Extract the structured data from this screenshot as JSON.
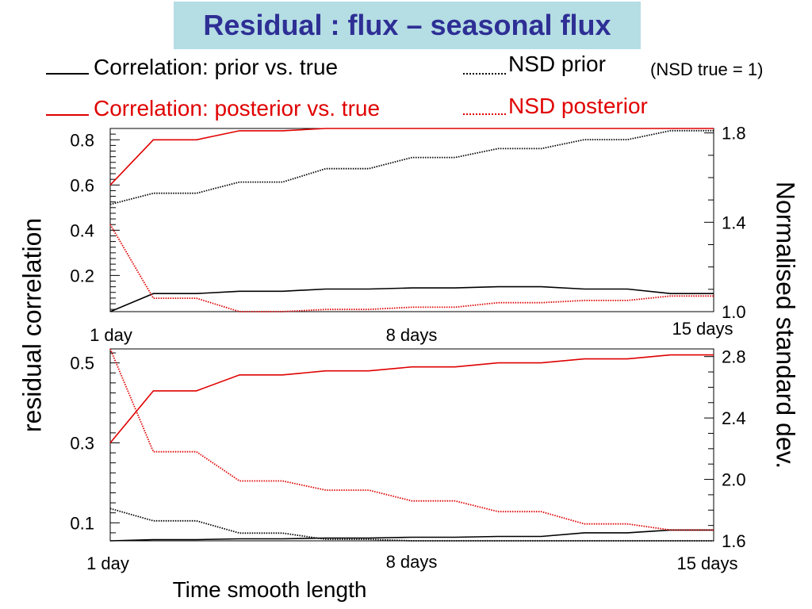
{
  "title": "Residual : flux – seasonal flux",
  "legend": {
    "corr_prior": "Correlation: prior vs. true",
    "corr_post": "Correlation: posterior vs. true",
    "nsd_prior": "NSD prior",
    "nsd_post": "NSD posterior",
    "note": "(NSD true = 1)"
  },
  "colors": {
    "prior": "#000000",
    "posterior": "#e00000",
    "title_bg": "#b4dde4",
    "title_fg": "#2e2f95"
  },
  "axes": {
    "left_label": "residual correlation",
    "right_label": "Normalised standard dev.",
    "x_label": "Time smooth length"
  },
  "chart_data": [
    {
      "type": "line",
      "panel": "top",
      "x": [
        1,
        2,
        3,
        4,
        5,
        6,
        7,
        8,
        9,
        10,
        11,
        12,
        13,
        14,
        15
      ],
      "x_ticks": [
        "1 day",
        "8 days",
        "15 days"
      ],
      "x_tick_values": [
        1,
        8,
        15
      ],
      "left_axis": {
        "ylim": [
          0.04,
          0.85
        ],
        "ticks": [
          0.2,
          0.4,
          0.6,
          0.8
        ],
        "tick_labels": [
          "0.2",
          "0.4",
          "0.6",
          "0.8"
        ]
      },
      "right_axis": {
        "ylim": [
          1.0,
          1.82
        ],
        "ticks": [
          1.0,
          1.4,
          1.8
        ],
        "tick_labels": [
          "1.0",
          "1.4",
          "1.8"
        ]
      },
      "series": [
        {
          "key": "corr_prior",
          "axis": "left",
          "style": "solid",
          "color": "#000000",
          "values": [
            0.04,
            0.12,
            0.12,
            0.13,
            0.13,
            0.14,
            0.14,
            0.145,
            0.145,
            0.15,
            0.15,
            0.14,
            0.14,
            0.12,
            0.12
          ]
        },
        {
          "key": "corr_post",
          "axis": "left",
          "style": "solid",
          "color": "#e00000",
          "values": [
            0.6,
            0.8,
            0.8,
            0.84,
            0.84,
            0.85,
            0.85,
            0.86,
            0.86,
            0.86,
            0.86,
            0.86,
            0.86,
            0.85,
            0.85
          ]
        },
        {
          "key": "nsd_prior",
          "axis": "right",
          "style": "dotted",
          "color": "#000000",
          "values": [
            1.48,
            1.53,
            1.53,
            1.58,
            1.58,
            1.64,
            1.64,
            1.69,
            1.69,
            1.73,
            1.73,
            1.77,
            1.77,
            1.81,
            1.81
          ]
        },
        {
          "key": "nsd_post",
          "axis": "right",
          "style": "dotted",
          "color": "#e00000",
          "values": [
            1.39,
            1.06,
            1.06,
            1.0,
            1.0,
            1.01,
            1.01,
            1.02,
            1.02,
            1.04,
            1.04,
            1.05,
            1.05,
            1.07,
            1.07
          ]
        }
      ]
    },
    {
      "type": "line",
      "panel": "bottom",
      "x": [
        1,
        2,
        3,
        4,
        5,
        6,
        7,
        8,
        9,
        10,
        11,
        12,
        13,
        14,
        15
      ],
      "x_ticks": [
        "1 day",
        "8 days",
        "15 days"
      ],
      "x_tick_values": [
        1,
        8,
        15
      ],
      "left_axis": {
        "ylim": [
          0.055,
          0.535
        ],
        "ticks": [
          0.1,
          0.3,
          0.5
        ],
        "tick_labels": [
          "0.1",
          "0.3",
          "0.5"
        ]
      },
      "right_axis": {
        "ylim": [
          1.6,
          2.85
        ],
        "ticks": [
          1.6,
          2.0,
          2.4,
          2.8
        ],
        "tick_labels": [
          "1.6",
          "2.0",
          "2.4",
          "2.8"
        ]
      },
      "series": [
        {
          "key": "corr_prior",
          "axis": "left",
          "style": "solid",
          "color": "#000000",
          "values": [
            0.055,
            0.058,
            0.058,
            0.06,
            0.06,
            0.062,
            0.062,
            0.064,
            0.064,
            0.066,
            0.066,
            0.075,
            0.075,
            0.082,
            0.082
          ]
        },
        {
          "key": "corr_post",
          "axis": "left",
          "style": "solid",
          "color": "#e00000",
          "values": [
            0.3,
            0.43,
            0.43,
            0.47,
            0.47,
            0.48,
            0.48,
            0.49,
            0.49,
            0.5,
            0.5,
            0.51,
            0.51,
            0.52,
            0.52
          ]
        },
        {
          "key": "nsd_prior",
          "axis": "right",
          "style": "dotted",
          "color": "#000000",
          "values": [
            1.81,
            1.73,
            1.73,
            1.65,
            1.65,
            1.61,
            1.61,
            1.6,
            1.6,
            1.6,
            1.6,
            1.6,
            1.6,
            1.6,
            1.6
          ]
        },
        {
          "key": "nsd_post",
          "axis": "right",
          "style": "dotted",
          "color": "#e00000",
          "values": [
            2.85,
            2.18,
            2.18,
            1.99,
            1.99,
            1.93,
            1.93,
            1.86,
            1.86,
            1.79,
            1.79,
            1.71,
            1.71,
            1.67,
            1.67
          ]
        }
      ]
    }
  ]
}
